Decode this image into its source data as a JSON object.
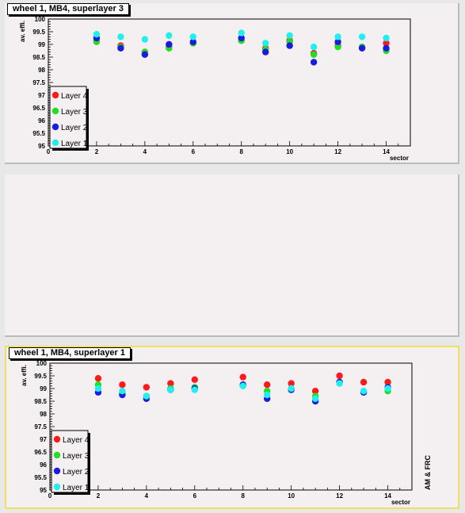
{
  "chart_data": [
    {
      "type": "scatter",
      "title": "wheel 1, MB4, superlayer 3",
      "xlabel": "sector",
      "ylabel": "av. effi.",
      "xlim": [
        0,
        15
      ],
      "ylim": [
        95,
        100
      ],
      "xticks": [
        "0",
        "2",
        "4",
        "6",
        "8",
        "10",
        "12",
        "14"
      ],
      "yticks": [
        "95",
        "95.5",
        "96",
        "96.5",
        "97",
        "97.5",
        "98",
        "98.5",
        "99",
        "99.5",
        "100"
      ],
      "legend_position": "bottom-left",
      "series": [
        {
          "name": "Layer 4",
          "color": "#ff1a1a",
          "x": [
            2,
            3,
            4,
            5,
            6,
            8,
            9,
            10,
            11,
            12,
            13,
            14
          ],
          "values": [
            99.15,
            98.95,
            98.7,
            98.9,
            99.05,
            99.15,
            98.85,
            99.15,
            98.65,
            98.95,
            98.9,
            99.05
          ]
        },
        {
          "name": "Layer 3",
          "color": "#22dd22",
          "x": [
            2,
            3,
            4,
            5,
            6,
            8,
            9,
            10,
            11,
            12,
            13,
            14
          ],
          "values": [
            99.1,
            98.9,
            98.7,
            98.85,
            99.05,
            99.15,
            98.8,
            99.1,
            98.6,
            98.9,
            98.9,
            98.75
          ]
        },
        {
          "name": "Layer 2",
          "color": "#1a1ae0",
          "x": [
            2,
            3,
            4,
            5,
            6,
            8,
            9,
            10,
            11,
            12,
            13,
            14
          ],
          "values": [
            99.25,
            98.85,
            98.6,
            99.0,
            99.1,
            99.25,
            98.7,
            98.95,
            98.3,
            99.1,
            98.85,
            98.85
          ]
        },
        {
          "name": "Layer 1",
          "color": "#22eeee",
          "x": [
            2,
            3,
            4,
            5,
            6,
            8,
            9,
            10,
            11,
            12,
            13,
            14
          ],
          "values": [
            99.4,
            99.3,
            99.2,
            99.35,
            99.3,
            99.45,
            99.05,
            99.35,
            98.9,
            99.3,
            99.3,
            99.25
          ]
        }
      ]
    },
    {
      "type": "scatter",
      "title": "wheel 1, MB4, superlayer 1",
      "xlabel": "sector",
      "ylabel": "av. effi.",
      "side_label": "AM & FRC",
      "xlim": [
        0,
        15
      ],
      "ylim": [
        95,
        100
      ],
      "xticks": [
        "0",
        "2",
        "4",
        "6",
        "8",
        "10",
        "12",
        "14"
      ],
      "yticks": [
        "95",
        "95.5",
        "96",
        "96.5",
        "97",
        "97.5",
        "98",
        "98.5",
        "99",
        "99.5",
        "100"
      ],
      "legend_position": "bottom-left",
      "series": [
        {
          "name": "Layer 4",
          "color": "#ff1a1a",
          "x": [
            2,
            3,
            4,
            5,
            6,
            8,
            9,
            10,
            11,
            12,
            13,
            14
          ],
          "values": [
            99.4,
            99.15,
            99.05,
            99.2,
            99.35,
            99.45,
            99.15,
            99.2,
            98.9,
            99.5,
            99.25,
            99.25
          ]
        },
        {
          "name": "Layer 3",
          "color": "#22dd22",
          "x": [
            2,
            3,
            4,
            5,
            6,
            8,
            9,
            10,
            11,
            12,
            13,
            14
          ],
          "values": [
            99.15,
            98.8,
            98.7,
            99.0,
            99.05,
            99.15,
            98.9,
            99.0,
            98.7,
            99.25,
            98.85,
            98.9
          ]
        },
        {
          "name": "Layer 2",
          "color": "#1a1ae0",
          "x": [
            2,
            3,
            4,
            5,
            6,
            8,
            9,
            10,
            11,
            12,
            13,
            14
          ],
          "values": [
            98.85,
            98.75,
            98.6,
            98.95,
            99.0,
            99.15,
            98.6,
            98.95,
            98.5,
            99.25,
            98.85,
            99.05
          ]
        },
        {
          "name": "Layer 1",
          "color": "#22eeee",
          "x": [
            2,
            3,
            4,
            5,
            6,
            8,
            9,
            10,
            11,
            12,
            13,
            14
          ],
          "values": [
            99.0,
            98.9,
            98.7,
            98.95,
            98.95,
            99.1,
            98.75,
            99.0,
            98.6,
            99.2,
            98.9,
            99.0
          ]
        }
      ]
    }
  ]
}
